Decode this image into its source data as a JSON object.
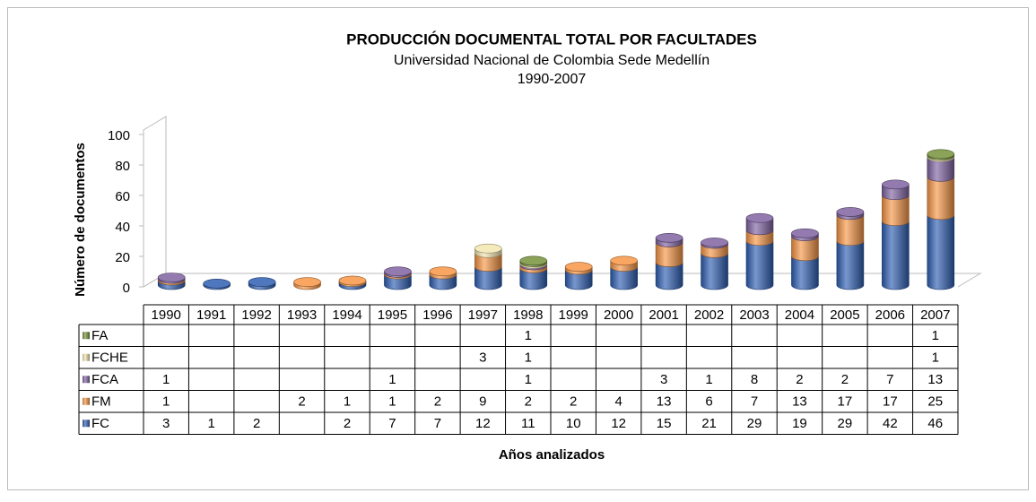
{
  "chart_data": {
    "type": "bar",
    "stacked": true,
    "title": "PRODUCCIÓN DOCUMENTAL TOTAL POR FACULTADES",
    "subtitle": "Universidad Nacional de Colombia Sede Medellín",
    "period": "1990-2007",
    "x_label": "Años analizados",
    "y_label": "Número de documentos",
    "categories": [
      "1990",
      "1991",
      "1992",
      "1993",
      "1994",
      "1995",
      "1996",
      "1997",
      "1998",
      "1999",
      "2000",
      "2001",
      "2002",
      "2003",
      "2004",
      "2005",
      "2006",
      "2007"
    ],
    "series": [
      {
        "name": "FC",
        "color": "#2f5fb3",
        "values": [
          3,
          1,
          2,
          null,
          2,
          7,
          7,
          12,
          11,
          10,
          12,
          15,
          21,
          29,
          19,
          29,
          42,
          46
        ]
      },
      {
        "name": "FM",
        "color": "#f79646",
        "values": [
          1,
          null,
          null,
          2,
          1,
          1,
          2,
          9,
          2,
          2,
          4,
          13,
          6,
          7,
          13,
          17,
          17,
          25
        ]
      },
      {
        "name": "FCA",
        "color": "#8064a2",
        "values": [
          1,
          null,
          null,
          null,
          null,
          1,
          null,
          null,
          1,
          null,
          null,
          3,
          1,
          8,
          2,
          2,
          7,
          13
        ]
      },
      {
        "name": "FCHE",
        "color": "#f2e6b0",
        "values": [
          null,
          null,
          null,
          null,
          null,
          null,
          null,
          3,
          1,
          null,
          null,
          null,
          null,
          null,
          null,
          null,
          null,
          1
        ]
      },
      {
        "name": "FA",
        "color": "#77933c",
        "values": [
          null,
          null,
          null,
          null,
          null,
          null,
          null,
          null,
          1,
          null,
          null,
          null,
          null,
          null,
          null,
          null,
          null,
          1
        ]
      }
    ],
    "ylim": [
      0,
      100
    ],
    "yticks": [
      0,
      20,
      40,
      60,
      80,
      100
    ]
  }
}
